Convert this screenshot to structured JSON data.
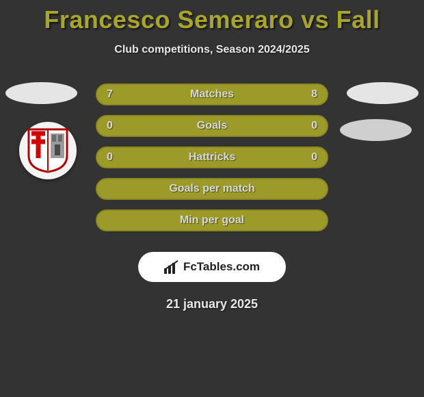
{
  "title": "Francesco Semeraro vs Fall",
  "subtitle": "Club competitions, Season 2024/2025",
  "rows": [
    {
      "left": "7",
      "label": "Matches",
      "right": "8"
    },
    {
      "left": "0",
      "label": "Goals",
      "right": "0"
    },
    {
      "left": "0",
      "label": "Hattricks",
      "right": "0"
    },
    {
      "left": "",
      "label": "Goals per match",
      "right": ""
    },
    {
      "left": "",
      "label": "Min per goal",
      "right": ""
    }
  ],
  "branding_text": "FcTables.com",
  "date": "21 january 2025",
  "colors": {
    "background": "#333333",
    "accent": "#a8a52d",
    "bar_fill": "#9c9a29",
    "bar_border": "#8a881f",
    "text_light": "#d8d8d8",
    "oval": "#e5e5e5",
    "oval_alt": "#cfcfcf",
    "branding_bg": "#ffffff"
  }
}
